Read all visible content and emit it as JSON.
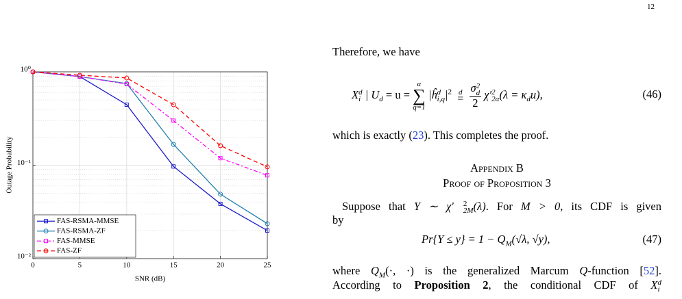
{
  "page_number": "12",
  "chart_data": {
    "type": "line",
    "xlabel": "SNR (dB)",
    "ylabel": "Outage Probability",
    "x": [
      0,
      5,
      10,
      15,
      20,
      25
    ],
    "xlim": [
      0,
      25
    ],
    "xticks": [
      0,
      5,
      10,
      15,
      20,
      25
    ],
    "ylim": [
      0.01,
      1
    ],
    "yscale": "log",
    "yticks": [
      {
        "value": 1,
        "label": "10⁰"
      },
      {
        "value": 0.1,
        "label": "10⁻¹"
      },
      {
        "value": 0.01,
        "label": "10⁻²"
      }
    ],
    "grid": true,
    "minor_grid": true,
    "legend": "lower left",
    "series": [
      {
        "name": "FAS-RSMA-MMSE",
        "color": "#1c1cc8",
        "marker": "square",
        "linestyle": "solid",
        "values": [
          1.0,
          0.89,
          0.445,
          0.097,
          0.0386,
          0.02
        ]
      },
      {
        "name": "FAS-RSMA-ZF",
        "color": "#1f7fb0",
        "marker": "circle",
        "linestyle": "solid",
        "values": [
          1.0,
          0.89,
          0.75,
          0.167,
          0.049,
          0.0237
        ]
      },
      {
        "name": "FAS-MMSE",
        "color": "#ff00ff",
        "marker": "square",
        "linestyle": "dashdot",
        "values": [
          1.0,
          0.89,
          0.74,
          0.3,
          0.119,
          0.078
        ]
      },
      {
        "name": "FAS-ZF",
        "color": "#ff0000",
        "marker": "circle",
        "linestyle": "dashed",
        "values": [
          1.0,
          0.92,
          0.86,
          0.445,
          0.162,
          0.096
        ]
      }
    ]
  },
  "document": {
    "text_1": "Therefore, we have",
    "equation_46": {
      "atoms": [
        "X",
        "d",
        "i",
        "| U",
        "d",
        " = u = ",
        "α",
        "∑",
        "q=1",
        "|ĥ",
        "d",
        "i,q",
        "|",
        "2",
        "d",
        "=",
        "σ",
        "2",
        "d",
        "2",
        "χ′",
        "2",
        "2α",
        "(λ = κ",
        "d",
        "u),"
      ],
      "number": "(46)"
    },
    "text_2": [
      "which is exactly (",
      "23",
      "). This completes the proof."
    ],
    "appendix_title": "Appendix B",
    "appendix_subtitle": "Proof of Proposition 3",
    "text_3": [
      "Suppose that ",
      "Y ∼ χ′",
      "2",
      "2M",
      "(λ)",
      ". For ",
      "M > 0",
      ", its CDF is given"
    ],
    "text_4": "by",
    "equation_47": {
      "atoms": [
        "Pr{Y ≤ y} = 1 − Q",
        "M",
        "(√λ, √y),"
      ],
      "number": "(47)"
    },
    "text_5": [
      "where ",
      "Q",
      "M",
      "(·, ·)",
      " is the generalized Marcum ",
      "Q",
      "-function [",
      "52",
      "]."
    ],
    "text_6": [
      "According to ",
      "Proposition 2",
      ", the conditional CDF of ",
      "X",
      "d",
      "i"
    ]
  }
}
